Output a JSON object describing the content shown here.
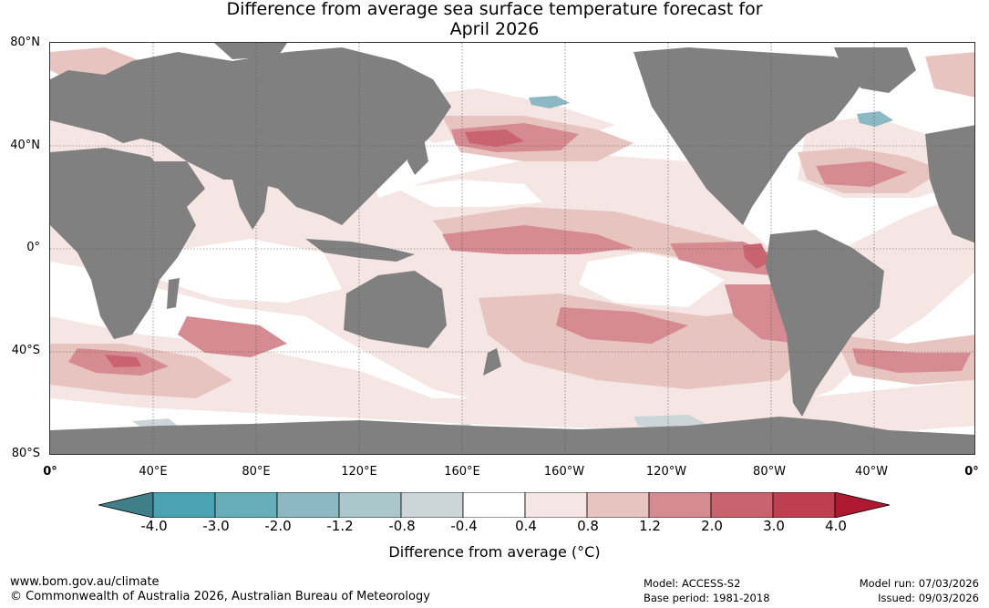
{
  "title": {
    "line1": "Difference from average sea surface temperature forecast for",
    "line2": "April 2026"
  },
  "axes": {
    "lat_labels": [
      "80°N",
      "40°N",
      "0°",
      "40°S",
      "80°S"
    ],
    "lon_labels": [
      "0°",
      "40°E",
      "80°E",
      "120°E",
      "160°E",
      "160°W",
      "120°W",
      "80°W",
      "40°W",
      "0°"
    ]
  },
  "colorbar": {
    "labels": [
      "-4.0",
      "-3.0",
      "-2.0",
      "-1.2",
      "-0.8",
      "-0.4",
      "0.4",
      "0.8",
      "1.2",
      "2.0",
      "3.0",
      "4.0"
    ],
    "colors": [
      "#3e7f88",
      "#4aa2b3",
      "#67adba",
      "#8bb8c3",
      "#abc7cc",
      "#ccd6d8",
      "#ffffff",
      "#f5e6e4",
      "#e8c4c0",
      "#d68a92",
      "#c9636f",
      "#be4050",
      "#ae1830"
    ],
    "title": "Difference from average (°C)"
  },
  "map_colors": {
    "land": "#808080",
    "ocean_neutral": "#ffffff",
    "warm_light": "#f5e6e4",
    "warm_mid": "#e8c4c0",
    "warm_strong": "#d68a92",
    "warm_very": "#c9636f",
    "warm_extreme": "#be4050",
    "cool_light": "#ccd6d8",
    "cool_mid": "#8bb8c3"
  },
  "footer": {
    "url": "www.bom.gov.au/climate",
    "copyright": "© Commonwealth of Australia 2026, Australian Bureau of Meteorology",
    "model": "Model: ACCESS-S2",
    "base_period": "Base period: 1981-2018",
    "model_run": "Model run: 07/03/2026",
    "issued": "Issued: 09/03/2026"
  }
}
